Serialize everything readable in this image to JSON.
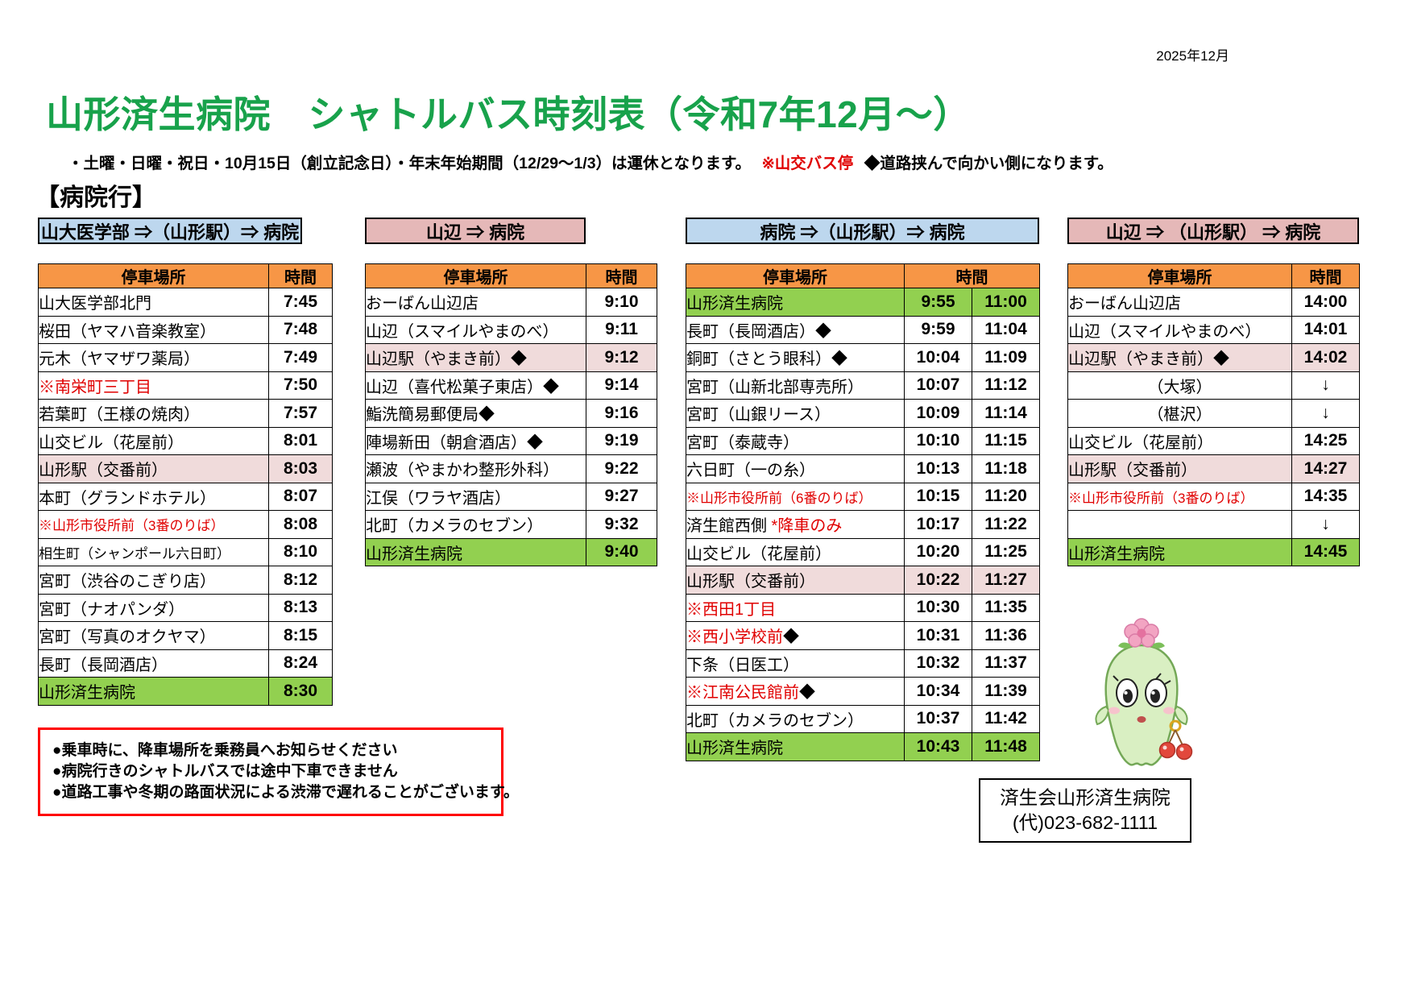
{
  "page": {
    "date": "2025年12月",
    "title": "山形済生病院　シャトルバス時刻表（令和7年12月～）",
    "notice": {
      "black1": "・土曜・日曜・祝日・10月15日（創立記念日）・年末年始期間（12/29～1/3）は運休となります。",
      "red": "※山交バス停",
      "black2": "◆道路挟んで向かい側になります。"
    },
    "section_heading": "【病院行】"
  },
  "colors": {
    "header_orange": "#F79646",
    "banner_blue": "#BDD7EE",
    "banner_pink": "#E5B8B8",
    "row_pink": "#F0DBDB",
    "row_green": "#92D050",
    "red_text": "#E00000",
    "title_green": "#18A24B",
    "note_border": "#FF0000"
  },
  "tables": [
    {
      "banner": "山大医学部 ⇒（山形駅）⇒ 病院",
      "banner_style": "banner-blue",
      "headers": {
        "stop": "停車場所",
        "time": "時間"
      },
      "time_cols": 1,
      "rows": [
        {
          "stop": "山大医学部北門",
          "times": [
            "7:45"
          ]
        },
        {
          "stop": "桜田（ヤマハ音楽教室）",
          "times": [
            "7:48"
          ]
        },
        {
          "stop": "元木（ヤマザワ薬局）",
          "times": [
            "7:49"
          ]
        },
        {
          "stop": "※南栄町三丁目",
          "red": true,
          "times": [
            "7:50"
          ]
        },
        {
          "stop": "若葉町（王様の焼肉）",
          "times": [
            "7:57"
          ]
        },
        {
          "stop": "山交ビル（花屋前）",
          "times": [
            "8:01"
          ]
        },
        {
          "stop": "山形駅（交番前）",
          "bg": "pink",
          "times": [
            "8:03"
          ]
        },
        {
          "stop": "本町（グランドホテル）",
          "times": [
            "8:07"
          ]
        },
        {
          "stop": "※山形市役所前（3番のりば）",
          "red": true,
          "times": [
            "8:08"
          ]
        },
        {
          "stop": "相生町（シャンポール六日町）",
          "times": [
            "8:10"
          ]
        },
        {
          "stop": "宮町（渋谷のこぎり店）",
          "times": [
            "8:12"
          ]
        },
        {
          "stop": "宮町（ナオパンダ）",
          "times": [
            "8:13"
          ]
        },
        {
          "stop": "宮町（写真のオクヤマ）",
          "times": [
            "8:15"
          ]
        },
        {
          "stop": "長町（長岡酒店）",
          "times": [
            "8:24"
          ]
        },
        {
          "stop": "山形済生病院",
          "bg": "green",
          "times": [
            "8:30"
          ]
        }
      ]
    },
    {
      "banner": "山辺 ⇒ 病院",
      "banner_style": "banner-pink",
      "headers": {
        "stop": "停車場所",
        "time": "時間"
      },
      "time_cols": 1,
      "rows": [
        {
          "stop": "おーばん山辺店",
          "times": [
            "9:10"
          ]
        },
        {
          "stop": "山辺（スマイルやまのべ）",
          "times": [
            "9:11"
          ]
        },
        {
          "stop": "山辺駅（やまき前）◆",
          "bg": "pink",
          "times": [
            "9:12"
          ]
        },
        {
          "stop": "山辺（喜代松菓子東店）◆",
          "times": [
            "9:14"
          ]
        },
        {
          "stop": "鮨洗簡易郵便局◆",
          "times": [
            "9:16"
          ]
        },
        {
          "stop": "陣場新田（朝倉酒店）◆",
          "times": [
            "9:19"
          ]
        },
        {
          "stop": "瀬波（やまかわ整形外科）",
          "times": [
            "9:22"
          ]
        },
        {
          "stop": "江俣（ワラヤ酒店）",
          "times": [
            "9:27"
          ]
        },
        {
          "stop": "北町（カメラのセブン）",
          "times": [
            "9:32"
          ]
        },
        {
          "stop": "山形済生病院",
          "bg": "green",
          "times": [
            "9:40"
          ]
        }
      ]
    },
    {
      "banner": "病院 ⇒（山形駅）⇒ 病院",
      "banner_style": "banner-blue",
      "headers": {
        "stop": "停車場所",
        "time": "時間"
      },
      "time_cols": 2,
      "rows": [
        {
          "stop": "山形済生病院",
          "bg": "green",
          "times": [
            "9:55",
            "11:00"
          ]
        },
        {
          "stop": "長町（長岡酒店）◆",
          "times": [
            "9:59",
            "11:04"
          ]
        },
        {
          "stop": "銅町（さとう眼科）◆",
          "times": [
            "10:04",
            "11:09"
          ]
        },
        {
          "stop": "宮町（山新北部専売所）",
          "times": [
            "10:07",
            "11:12"
          ]
        },
        {
          "stop": "宮町（山銀リース）",
          "times": [
            "10:09",
            "11:14"
          ]
        },
        {
          "stop": "宮町（泰蔵寺）",
          "times": [
            "10:10",
            "11:15"
          ]
        },
        {
          "stop": "六日町（一の糸）",
          "times": [
            "10:13",
            "11:18"
          ]
        },
        {
          "stop": "※山形市役所前（6番のりば）",
          "red": true,
          "times": [
            "10:15",
            "11:20"
          ]
        },
        {
          "stop": "済生館西側",
          "suffix_red": " *降車のみ",
          "times": [
            "10:17",
            "11:22"
          ]
        },
        {
          "stop": "山交ビル（花屋前）",
          "times": [
            "10:20",
            "11:25"
          ]
        },
        {
          "stop": "山形駅（交番前）",
          "bg": "pink",
          "times": [
            "10:22",
            "11:27"
          ]
        },
        {
          "stop": "※西田1丁目",
          "red": true,
          "times": [
            "10:30",
            "11:35"
          ]
        },
        {
          "stop": "※西小学校前",
          "red": true,
          "suffix": "◆",
          "times": [
            "10:31",
            "11:36"
          ]
        },
        {
          "stop": "下条（日医工）",
          "times": [
            "10:32",
            "11:37"
          ]
        },
        {
          "stop": "※江南公民館前",
          "red": true,
          "suffix": "◆",
          "times": [
            "10:34",
            "11:39"
          ]
        },
        {
          "stop": "北町（カメラのセブン）",
          "times": [
            "10:37",
            "11:42"
          ]
        },
        {
          "stop": "山形済生病院",
          "bg": "green",
          "times": [
            "10:43",
            "11:48"
          ]
        }
      ]
    },
    {
      "banner": "山辺 ⇒ （山形駅） ⇒ 病院",
      "banner_style": "banner-pink",
      "headers": {
        "stop": "停車場所",
        "time": "時間"
      },
      "time_cols": 1,
      "rows": [
        {
          "stop": "おーばん山辺店",
          "times": [
            "14:00"
          ]
        },
        {
          "stop": "山辺（スマイルやまのべ）",
          "times": [
            "14:01"
          ]
        },
        {
          "stop": "山辺駅（やまき前）◆",
          "bg": "pink",
          "times": [
            "14:02"
          ]
        },
        {
          "stop": "（大塚）",
          "center": true,
          "times": [
            "↓"
          ]
        },
        {
          "stop": "（椹沢）",
          "center": true,
          "times": [
            "↓"
          ]
        },
        {
          "stop": "山交ビル（花屋前）",
          "times": [
            "14:25"
          ]
        },
        {
          "stop": "山形駅（交番前）",
          "bg": "pink",
          "times": [
            "14:27"
          ]
        },
        {
          "stop": "※山形市役所前（3番のりば）",
          "red": true,
          "times": [
            "14:35"
          ]
        },
        {
          "stop": "",
          "times": [
            "↓"
          ]
        },
        {
          "stop": "山形済生病院",
          "bg": "green",
          "times": [
            "14:45"
          ]
        }
      ]
    }
  ],
  "notes": {
    "items": [
      "●乗車時に、降車場所を乗務員へお知らせください",
      "●病院行きのシャトルバスでは途中下車できません",
      "●道路工事や冬期の路面状況による渋滞で遅れることがございます。"
    ]
  },
  "contact": {
    "name": "済生会山形済生病院",
    "phone": "(代)023-682-1111"
  },
  "mascot_icon": "flower-fairy-mascot-with-cherries"
}
